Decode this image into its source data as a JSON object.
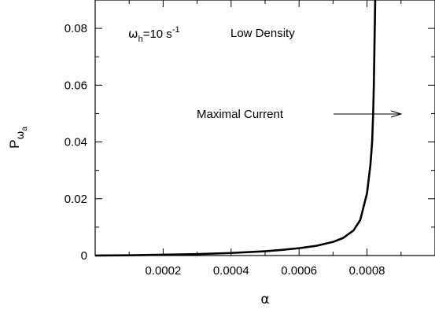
{
  "chart_data": {
    "type": "line",
    "xlabel": "α",
    "ylabel": {
      "main": "P",
      "sub": "ω",
      "subsub": "a"
    },
    "xlim": [
      0,
      0.001
    ],
    "ylim": [
      0,
      0.09
    ],
    "x_ticks": [
      {
        "value": 0.0002,
        "label": "0.0002"
      },
      {
        "value": 0.0004,
        "label": "0.0004"
      },
      {
        "value": 0.0006,
        "label": "0.0006"
      },
      {
        "value": 0.0008,
        "label": "0.0008"
      }
    ],
    "x_minor_ticks": [
      0.0001,
      0.0003,
      0.0005,
      0.0007,
      0.0009
    ],
    "y_ticks": [
      {
        "value": 0,
        "label": "0"
      },
      {
        "value": 0.02,
        "label": "0.02"
      },
      {
        "value": 0.04,
        "label": "0.04"
      },
      {
        "value": 0.06,
        "label": "0.06"
      },
      {
        "value": 0.08,
        "label": "0.08"
      }
    ],
    "y_minor_ticks": [
      0.01,
      0.03,
      0.05,
      0.07
    ],
    "series": [
      {
        "color": "#000000",
        "points": [
          [
            0.0,
            0.0
          ],
          [
            0.0001,
            0.0001
          ],
          [
            0.0002,
            0.0003
          ],
          [
            0.0003,
            0.0005
          ],
          [
            0.0004,
            0.0009
          ],
          [
            0.0005,
            0.0015
          ],
          [
            0.00055,
            0.002
          ],
          [
            0.0006,
            0.0026
          ],
          [
            0.00065,
            0.0034
          ],
          [
            0.0007,
            0.0048
          ],
          [
            0.00073,
            0.0062
          ],
          [
            0.00076,
            0.0088
          ],
          [
            0.00078,
            0.0125
          ],
          [
            0.0008,
            0.022
          ],
          [
            0.00081,
            0.032
          ],
          [
            0.000815,
            0.04
          ],
          [
            0.000818,
            0.05
          ],
          [
            0.00082,
            0.06
          ],
          [
            0.000822,
            0.075
          ],
          [
            0.000824,
            0.09
          ]
        ]
      }
    ],
    "annotations": {
      "omega": {
        "base": "ω",
        "sub": "h",
        "rest": "=10 s",
        "sup": "-1"
      },
      "low_density": "Low Density",
      "maximal_current": "Maximal Current"
    }
  }
}
